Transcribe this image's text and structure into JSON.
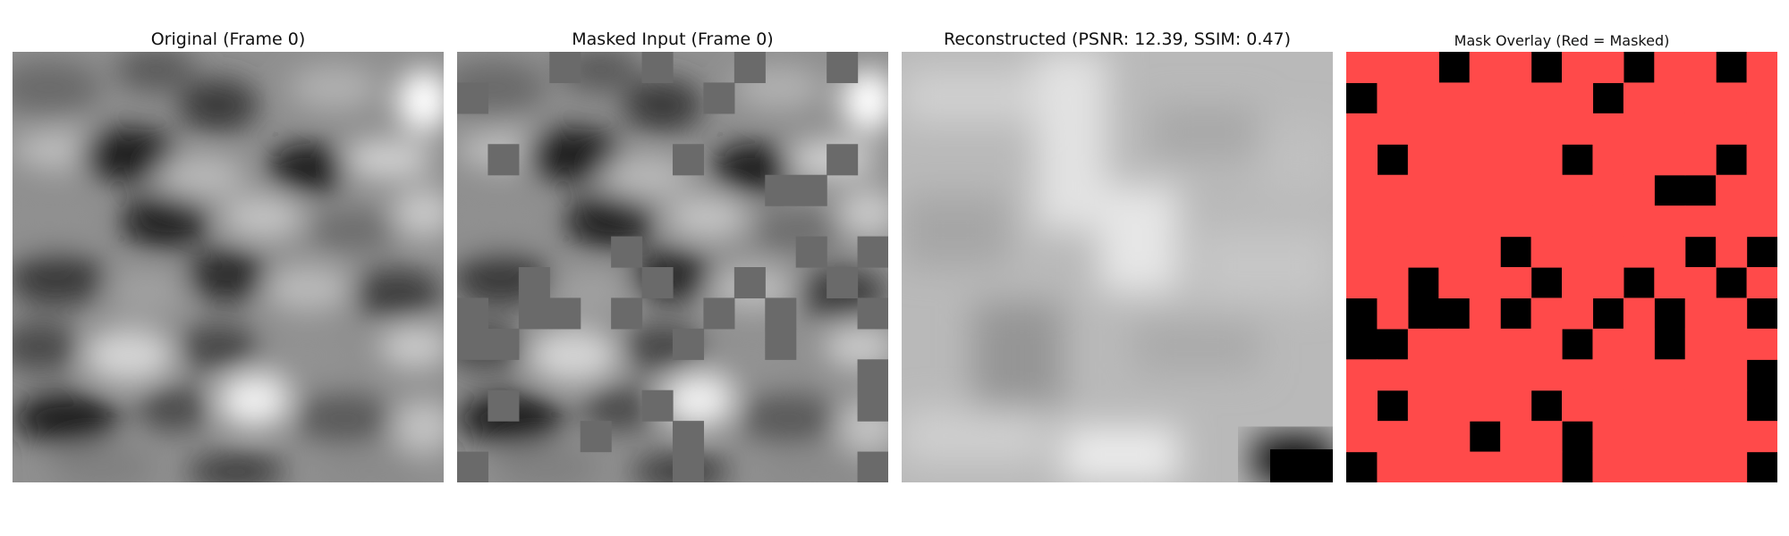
{
  "figure": {
    "panels": [
      {
        "title": "Original (Frame 0)"
      },
      {
        "title": "Masked Input (Frame 0)"
      },
      {
        "title": "Reconstructed (PSNR: 12.39, SSIM: 0.47)"
      },
      {
        "title": "Mask Overlay (Red = Masked)"
      }
    ]
  },
  "colors": {
    "mask_red": "#ff4a4a",
    "mask_unmasked": "#000000",
    "masked_fill": "#6a6a6a"
  },
  "grid": {
    "cells_per_side": 14,
    "masked_cells": [
      [
        0,
        0
      ],
      [
        0,
        1
      ],
      [
        0,
        2
      ],
      [
        0,
        4
      ],
      [
        0,
        5
      ],
      [
        0,
        7
      ],
      [
        0,
        8
      ],
      [
        0,
        10
      ],
      [
        0,
        11
      ],
      [
        0,
        13
      ],
      [
        1,
        1
      ],
      [
        1,
        2
      ],
      [
        1,
        3
      ],
      [
        1,
        4
      ],
      [
        1,
        5
      ],
      [
        1,
        6
      ],
      [
        1,
        7
      ],
      [
        1,
        9
      ],
      [
        1,
        10
      ],
      [
        1,
        11
      ],
      [
        1,
        12
      ],
      [
        1,
        13
      ],
      [
        2,
        0
      ],
      [
        2,
        1
      ],
      [
        2,
        2
      ],
      [
        2,
        3
      ],
      [
        2,
        4
      ],
      [
        2,
        5
      ],
      [
        2,
        6
      ],
      [
        2,
        7
      ],
      [
        2,
        8
      ],
      [
        2,
        9
      ],
      [
        2,
        10
      ],
      [
        2,
        11
      ],
      [
        2,
        12
      ],
      [
        2,
        13
      ],
      [
        3,
        0
      ],
      [
        3,
        2
      ],
      [
        3,
        3
      ],
      [
        3,
        4
      ],
      [
        3,
        5
      ],
      [
        3,
        6
      ],
      [
        3,
        8
      ],
      [
        3,
        9
      ],
      [
        3,
        10
      ],
      [
        3,
        11
      ],
      [
        3,
        13
      ],
      [
        4,
        0
      ],
      [
        4,
        1
      ],
      [
        4,
        2
      ],
      [
        4,
        3
      ],
      [
        4,
        4
      ],
      [
        4,
        5
      ],
      [
        4,
        6
      ],
      [
        4,
        7
      ],
      [
        4,
        8
      ],
      [
        4,
        9
      ],
      [
        4,
        12
      ],
      [
        4,
        13
      ],
      [
        5,
        0
      ],
      [
        5,
        1
      ],
      [
        5,
        2
      ],
      [
        5,
        3
      ],
      [
        5,
        4
      ],
      [
        5,
        5
      ],
      [
        5,
        6
      ],
      [
        5,
        7
      ],
      [
        5,
        8
      ],
      [
        5,
        9
      ],
      [
        5,
        10
      ],
      [
        5,
        11
      ],
      [
        5,
        12
      ],
      [
        5,
        13
      ],
      [
        6,
        0
      ],
      [
        6,
        1
      ],
      [
        6,
        2
      ],
      [
        6,
        3
      ],
      [
        6,
        4
      ],
      [
        6,
        6
      ],
      [
        6,
        7
      ],
      [
        6,
        8
      ],
      [
        6,
        9
      ],
      [
        6,
        10
      ],
      [
        6,
        12
      ],
      [
        7,
        0
      ],
      [
        7,
        1
      ],
      [
        7,
        3
      ],
      [
        7,
        4
      ],
      [
        7,
        5
      ],
      [
        7,
        7
      ],
      [
        7,
        8
      ],
      [
        7,
        10
      ],
      [
        7,
        11
      ],
      [
        7,
        13
      ],
      [
        8,
        1
      ],
      [
        8,
        4
      ],
      [
        8,
        6
      ],
      [
        8,
        7
      ],
      [
        8,
        9
      ],
      [
        8,
        11
      ],
      [
        8,
        12
      ],
      [
        9,
        2
      ],
      [
        9,
        3
      ],
      [
        9,
        4
      ],
      [
        9,
        5
      ],
      [
        9,
        6
      ],
      [
        9,
        8
      ],
      [
        9,
        9
      ],
      [
        9,
        11
      ],
      [
        9,
        12
      ],
      [
        9,
        13
      ],
      [
        10,
        0
      ],
      [
        10,
        1
      ],
      [
        10,
        2
      ],
      [
        10,
        3
      ],
      [
        10,
        4
      ],
      [
        10,
        5
      ],
      [
        10,
        6
      ],
      [
        10,
        7
      ],
      [
        10,
        8
      ],
      [
        10,
        9
      ],
      [
        10,
        10
      ],
      [
        10,
        11
      ],
      [
        10,
        12
      ],
      [
        11,
        0
      ],
      [
        11,
        2
      ],
      [
        11,
        3
      ],
      [
        11,
        4
      ],
      [
        11,
        5
      ],
      [
        11,
        7
      ],
      [
        11,
        8
      ],
      [
        11,
        9
      ],
      [
        11,
        10
      ],
      [
        11,
        11
      ],
      [
        11,
        12
      ],
      [
        12,
        0
      ],
      [
        12,
        1
      ],
      [
        12,
        2
      ],
      [
        12,
        3
      ],
      [
        12,
        5
      ],
      [
        12,
        6
      ],
      [
        12,
        8
      ],
      [
        12,
        9
      ],
      [
        12,
        10
      ],
      [
        12,
        11
      ],
      [
        12,
        12
      ],
      [
        12,
        13
      ],
      [
        13,
        1
      ],
      [
        13,
        2
      ],
      [
        13,
        3
      ],
      [
        13,
        4
      ],
      [
        13,
        5
      ],
      [
        13,
        6
      ],
      [
        13,
        8
      ],
      [
        13,
        9
      ],
      [
        13,
        10
      ],
      [
        13,
        11
      ],
      [
        13,
        12
      ]
    ]
  }
}
